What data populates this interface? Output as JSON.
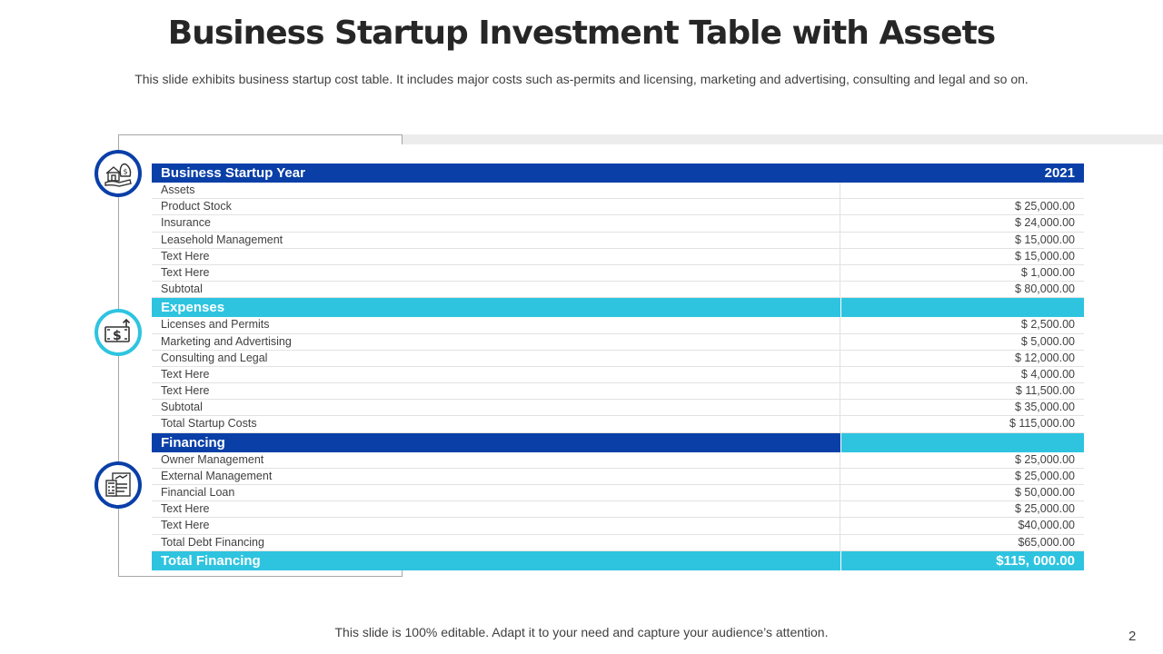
{
  "title": "Business Startup Investment Table with Assets",
  "subtitle": "This slide exhibits business startup cost table. It includes major costs such as-permits and licensing, marketing and advertising, consulting and legal and so on.",
  "colors": {
    "dark_blue": "#0a3fa8",
    "light_blue": "#2ec4e0"
  },
  "icons": [
    "house-money-icon",
    "cash-arrow-icon",
    "financial-report-icon"
  ],
  "table": {
    "header": {
      "label": "Business Startup Year",
      "value": "2021"
    },
    "assets": [
      {
        "label": "Assets",
        "value": ""
      },
      {
        "label": "Product Stock",
        "value": "$ 25,000.00"
      },
      {
        "label": "Insurance",
        "value": "$ 24,000.00"
      },
      {
        "label": "Leasehold Management",
        "value": "$ 15,000.00"
      },
      {
        "label": "Text Here",
        "value": "$ 15,000.00"
      },
      {
        "label": "Text Here",
        "value": "$ 1,000.00"
      },
      {
        "label": "Subtotal",
        "value": "$ 80,000.00"
      }
    ],
    "expenses_header": {
      "label": "Expenses",
      "value": ""
    },
    "expenses": [
      {
        "label": "Licenses and Permits",
        "value": "$ 2,500.00"
      },
      {
        "label": "Marketing and Advertising",
        "value": "$ 5,000.00"
      },
      {
        "label": "Consulting and Legal",
        "value": "$ 12,000.00"
      },
      {
        "label": "Text Here",
        "value": "$ 4,000.00"
      },
      {
        "label": "Text Here",
        "value": "$ 11,500.00"
      },
      {
        "label": "Subtotal",
        "value": "$ 35,000.00"
      },
      {
        "label": "Total Startup Costs",
        "value": "$ 115,000.00"
      }
    ],
    "financing_header": {
      "label": "Financing",
      "value": ""
    },
    "financing": [
      {
        "label": "Owner Management",
        "value": "$ 25,000.00"
      },
      {
        "label": "External Management",
        "value": "$ 25,000.00"
      },
      {
        "label": "Financial Loan",
        "value": "$ 50,000.00"
      },
      {
        "label": "Text Here",
        "value": "$ 25,000.00"
      },
      {
        "label": "Text Here",
        "value": "$40,000.00"
      },
      {
        "label": "Total Debt Financing",
        "value": "$65,000.00"
      }
    ],
    "total": {
      "label": "Total Financing",
      "value": "$115, 000.00"
    }
  },
  "footer": "This slide is 100% editable. Adapt it to your need and capture your audience’s attention.",
  "page_number": "2"
}
